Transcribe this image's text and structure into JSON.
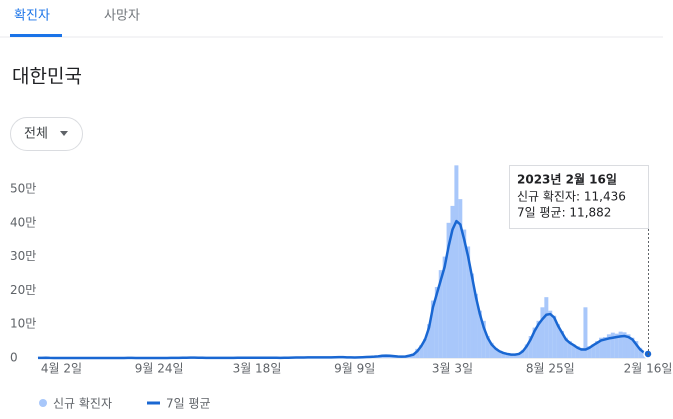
{
  "tabs": [
    "확진자",
    "사망자"
  ],
  "header": {
    "title": "대한민국"
  },
  "filter": "전체",
  "chart_data": {
    "type": "bar-line",
    "categories": [
      null,
      null,
      null,
      null,
      null,
      null,
      "4월 2일",
      null,
      null,
      null,
      null,
      null,
      null,
      null,
      null,
      null,
      null,
      null,
      null,
      null,
      null,
      null,
      null,
      null,
      null,
      null,
      null,
      null,
      null,
      null,
      null,
      "9월 24일",
      null,
      null,
      null,
      null,
      null,
      null,
      null,
      null,
      null,
      null,
      null,
      null,
      null,
      null,
      null,
      null,
      null,
      null,
      null,
      null,
      null,
      null,
      null,
      null,
      "3월 18일",
      null,
      null,
      null,
      null,
      null,
      null,
      null,
      null,
      null,
      null,
      null,
      null,
      null,
      null,
      null,
      null,
      null,
      null,
      null,
      null,
      null,
      null,
      null,
      null,
      "9월 9일",
      null,
      null,
      null,
      null,
      null,
      null,
      null,
      null,
      null,
      null,
      null,
      null,
      null,
      null,
      null,
      null,
      null,
      null,
      null,
      null,
      null,
      null,
      null,
      null,
      "3월 3일",
      null,
      null,
      null,
      null,
      null,
      null,
      null,
      null,
      null,
      null,
      null,
      null,
      null,
      null,
      null,
      null,
      null,
      null,
      null,
      null,
      null,
      null,
      null,
      null,
      "8월 25일",
      null,
      null,
      null,
      null,
      null,
      null,
      null,
      null,
      null,
      null,
      null,
      null,
      null,
      null,
      null,
      null,
      null,
      null,
      null,
      null,
      null,
      null,
      null,
      null,
      "2월 16일"
    ],
    "series": [
      {
        "name": "신규 확진자",
        "color": "#a8c7fa",
        "values": [
          300,
          600,
          500,
          150,
          100,
          90,
          110,
          60,
          30,
          10,
          15,
          25,
          40,
          45,
          40,
          60,
          45,
          40,
          60,
          35,
          30,
          40,
          150,
          300,
          280,
          130,
          110,
          70,
          90,
          60,
          80,
          90,
          110,
          160,
          230,
          350,
          450,
          700,
          900,
          1050,
          1100,
          850,
          650,
          450,
          420,
          380,
          450,
          420,
          430,
          480,
          520,
          600,
          650,
          700,
          580,
          620,
          560,
          520,
          590,
          620,
          700,
          560,
          480,
          600,
          800,
          1300,
          1600,
          1400,
          1800,
          1700,
          1600,
          2000,
          2100,
          1700,
          1600,
          2100,
          2400,
          3000,
          2300,
          1900,
          1600,
          1400,
          2000,
          2400,
          3100,
          4000,
          4200,
          5300,
          7100,
          7400,
          6300,
          5200,
          4200,
          3800,
          5000,
          8000,
          13000,
          27000,
          38000,
          57000,
          100000,
          170000,
          210000,
          260000,
          300000,
          400000,
          450000,
          570000,
          470000,
          380000,
          330000,
          250000,
          190000,
          140000,
          110000,
          65000,
          45000,
          30000,
          22000,
          16000,
          13000,
          9000,
          11000,
          14000,
          24000,
          40000,
          65000,
          90000,
          110000,
          150000,
          180000,
          140000,
          125000,
          100000,
          80000,
          60000,
          50000,
          40000,
          35000,
          30000,
          150000,
          35000,
          40000,
          50000,
          60000,
          62000,
          70000,
          75000,
          72000,
          78000,
          76000,
          70000,
          60000,
          50000,
          30000,
          20000,
          11436
        ]
      },
      {
        "name": "7일 평균",
        "color": "#1967d2",
        "values": [
          200,
          500,
          600,
          200,
          100,
          100,
          100,
          80,
          30,
          10,
          10,
          20,
          30,
          40,
          40,
          50,
          50,
          40,
          50,
          40,
          30,
          30,
          100,
          250,
          300,
          150,
          100,
          80,
          80,
          70,
          70,
          80,
          100,
          150,
          200,
          300,
          400,
          600,
          800,
          1000,
          1000,
          900,
          700,
          500,
          400,
          400,
          400,
          400,
          400,
          450,
          500,
          550,
          600,
          650,
          600,
          600,
          550,
          550,
          550,
          600,
          650,
          600,
          500,
          550,
          700,
          1100,
          1400,
          1500,
          1600,
          1700,
          1700,
          1800,
          1900,
          1800,
          1700,
          1900,
          2200,
          2600,
          2500,
          2000,
          1700,
          1500,
          1800,
          2200,
          2800,
          3500,
          4000,
          5000,
          6500,
          7000,
          6500,
          5500,
          4500,
          4000,
          4500,
          7000,
          10000,
          20000,
          35000,
          55000,
          90000,
          150000,
          190000,
          230000,
          270000,
          330000,
          380000,
          405000,
          395000,
          350000,
          300000,
          240000,
          180000,
          130000,
          90000,
          60000,
          40000,
          28000,
          20000,
          15000,
          12000,
          10000,
          10000,
          12000,
          20000,
          35000,
          55000,
          80000,
          100000,
          115000,
          128000,
          130000,
          120000,
          95000,
          75000,
          55000,
          45000,
          38000,
          30000,
          25000,
          25000,
          30000,
          38000,
          45000,
          52000,
          55000,
          58000,
          60000,
          62000,
          64000,
          65000,
          62000,
          55000,
          40000,
          25000,
          16000,
          11882
        ]
      }
    ],
    "ylim": [
      0,
      500000
    ],
    "yticks": [
      0,
      {
        "value": 100000,
        "label": "10만"
      },
      {
        "value": 200000,
        "label": "20만"
      },
      {
        "value": 300000,
        "label": "30만"
      },
      {
        "value": 400000,
        "label": "40만"
      },
      {
        "value": 500000,
        "label": "50만"
      }
    ],
    "grid": false,
    "tooltip": {
      "title": "2023년 2월 16일",
      "lines": [
        "신규 확진자: 11,436",
        "7일 평균: 11,882"
      ]
    }
  }
}
